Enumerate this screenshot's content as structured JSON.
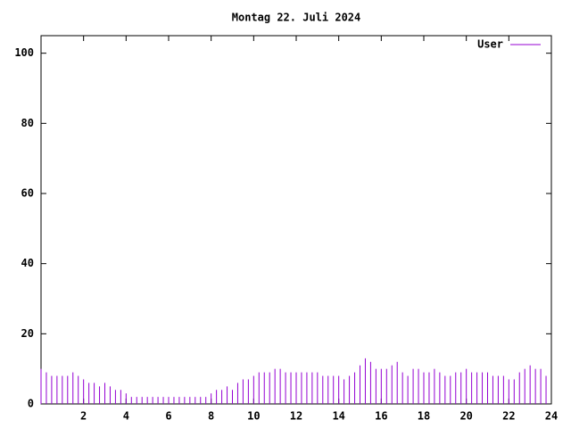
{
  "chart_data": {
    "type": "impulse",
    "title": "Montag 22. Juli 2024",
    "series": [
      {
        "name": "User",
        "color": "#9400d3",
        "x": [
          0,
          0.25,
          0.5,
          0.75,
          1,
          1.25,
          1.5,
          1.75,
          2,
          2.25,
          2.5,
          2.75,
          3,
          3.25,
          3.5,
          3.75,
          4,
          4.25,
          4.5,
          4.75,
          5,
          5.25,
          5.5,
          5.75,
          6,
          6.25,
          6.5,
          6.75,
          7,
          7.25,
          7.5,
          7.75,
          8,
          8.25,
          8.5,
          8.75,
          9,
          9.25,
          9.5,
          9.75,
          10,
          10.25,
          10.5,
          10.75,
          11,
          11.25,
          11.5,
          11.75,
          12,
          12.25,
          12.5,
          12.75,
          13,
          13.25,
          13.5,
          13.75,
          14,
          14.25,
          14.5,
          14.75,
          15,
          15.25,
          15.5,
          15.75,
          16,
          16.25,
          16.5,
          16.75,
          17,
          17.25,
          17.5,
          17.75,
          18,
          18.25,
          18.5,
          18.75,
          19,
          19.25,
          19.5,
          19.75,
          20,
          20.25,
          20.5,
          20.75,
          21,
          21.25,
          21.5,
          21.75,
          22,
          22.25,
          22.5,
          22.75,
          23,
          23.25,
          23.5,
          23.75
        ],
        "values": [
          10,
          9,
          8,
          8,
          8,
          8,
          9,
          8,
          7,
          6,
          6,
          5,
          6,
          5,
          4,
          4,
          3,
          2,
          2,
          2,
          2,
          2,
          2,
          2,
          2,
          2,
          2,
          2,
          2,
          2,
          2,
          2,
          3,
          4,
          4,
          5,
          4,
          6,
          7,
          7,
          8,
          9,
          9,
          9,
          10,
          10,
          9,
          9,
          9,
          9,
          9,
          9,
          9,
          8,
          8,
          8,
          8,
          7,
          8,
          9,
          11,
          13,
          12,
          10,
          10,
          10,
          11,
          12,
          9,
          8,
          10,
          10,
          9,
          9,
          10,
          9,
          8,
          8,
          9,
          9,
          10,
          9,
          9,
          9,
          9,
          8,
          8,
          8,
          7,
          7,
          9,
          10,
          11,
          10,
          10,
          8
        ]
      }
    ],
    "xlim": [
      0,
      24
    ],
    "xticks": [
      2,
      4,
      6,
      8,
      10,
      12,
      14,
      16,
      18,
      20,
      22,
      24
    ],
    "ylim": [
      0,
      105
    ],
    "yticks": [
      0,
      20,
      40,
      60,
      80,
      100
    ],
    "legend": "top-right"
  }
}
